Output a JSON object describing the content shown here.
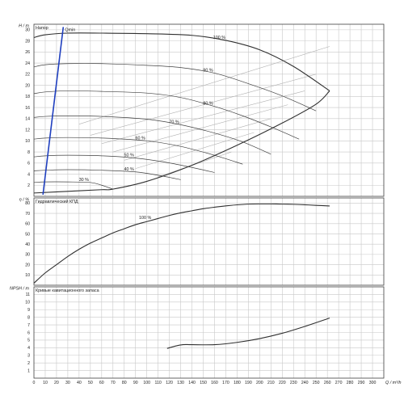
{
  "x_axis": {
    "label": "Q / m³/h",
    "ticks": [
      0,
      10,
      20,
      30,
      40,
      50,
      60,
      70,
      80,
      90,
      100,
      110,
      120,
      130,
      140,
      150,
      160,
      170,
      180,
      190,
      200,
      210,
      220,
      230,
      240,
      250,
      260,
      270,
      280,
      290,
      300
    ]
  },
  "chart_data": [
    {
      "type": "line",
      "title": "Напор",
      "ylabel": "H / m",
      "xlabel": "",
      "xlim": [
        0,
        310
      ],
      "ylim": [
        0,
        31
      ],
      "y_ticks": [
        2,
        4,
        6,
        8,
        10,
        12,
        14,
        16,
        18,
        20,
        22,
        24,
        26,
        28,
        30
      ],
      "grid": true,
      "series": [
        {
          "name": "100 %",
          "x": [
            0,
            10,
            30,
            60,
            100,
            140,
            170,
            200,
            230,
            262
          ],
          "y": [
            28.6,
            29.1,
            29.4,
            29.4,
            29.3,
            29.0,
            28.1,
            26.4,
            23.4,
            19.0
          ]
        },
        {
          "name": "90 %",
          "x": [
            0,
            10,
            30,
            60,
            100,
            130,
            160,
            190,
            220,
            250
          ],
          "y": [
            23.3,
            23.7,
            23.9,
            23.9,
            23.6,
            23.2,
            22.2,
            20.3,
            18.1,
            15.4
          ]
        },
        {
          "name": "80 %",
          "x": [
            0,
            10,
            30,
            60,
            100,
            130,
            160,
            185,
            210,
            235
          ],
          "y": [
            18.5,
            18.8,
            19.0,
            18.9,
            18.6,
            17.8,
            16.2,
            14.5,
            12.5,
            10.3
          ]
        },
        {
          "name": "70 %",
          "x": [
            0,
            10,
            30,
            60,
            100,
            130,
            160,
            185,
            210
          ],
          "y": [
            14.2,
            14.4,
            14.5,
            14.4,
            13.9,
            12.9,
            11.4,
            9.8,
            7.6
          ]
        },
        {
          "name": "60 %",
          "x": [
            0,
            10,
            30,
            60,
            100,
            130,
            160,
            185
          ],
          "y": [
            10.3,
            10.5,
            10.6,
            10.5,
            10.0,
            9.0,
            7.4,
            5.8
          ]
        },
        {
          "name": "50 %",
          "x": [
            0,
            10,
            30,
            60,
            90,
            115,
            140,
            160
          ],
          "y": [
            7.1,
            7.3,
            7.4,
            7.3,
            6.9,
            6.2,
            5.2,
            4.3
          ]
        },
        {
          "name": "40 %",
          "x": [
            0,
            10,
            30,
            60,
            90,
            110,
            130
          ],
          "y": [
            4.6,
            4.7,
            4.8,
            4.7,
            4.4,
            3.8,
            3.0
          ]
        },
        {
          "name": "30 %",
          "x": [
            0,
            10,
            30,
            50,
            60,
            70
          ],
          "y": [
            2.5,
            2.6,
            2.6,
            2.5,
            2.0,
            1.3
          ]
        },
        {
          "name": "",
          "x": [
            0,
            30,
            60,
            70,
            100,
            140,
            180,
            220,
            250,
            262
          ],
          "y": [
            0.6,
            0.9,
            1.2,
            1.3,
            2.7,
            5.6,
            9.2,
            13.2,
            16.6,
            19.0
          ]
        },
        {
          "name": "Qmin",
          "x": [
            8,
            26
          ],
          "y": [
            0.3,
            30.5
          ]
        }
      ],
      "efficiency_lines_x": [
        [
          40,
          262
        ],
        [
          50,
          250
        ],
        [
          60,
          240
        ],
        [
          70,
          225
        ],
        [
          80,
          210
        ],
        [
          90,
          195
        ],
        [
          110,
          175
        ]
      ],
      "efficiency_lines_y": [
        [
          13,
          27
        ],
        [
          11,
          22
        ],
        [
          9.5,
          19
        ],
        [
          8,
          16.5
        ],
        [
          6.5,
          14
        ],
        [
          5,
          11.5
        ],
        [
          3.5,
          8
        ]
      ]
    },
    {
      "type": "line",
      "title": "Гидравлический КПД",
      "ylabel": "η / %",
      "xlabel": "",
      "xlim": [
        0,
        310
      ],
      "ylim": [
        0,
        85
      ],
      "y_ticks": [
        10,
        20,
        30,
        40,
        50,
        60,
        70,
        80
      ],
      "grid": true,
      "series": [
        {
          "name": "100 %",
          "x": [
            0,
            10,
            20,
            30,
            40,
            50,
            60,
            70,
            80,
            90,
            100,
            110,
            120,
            130,
            140,
            150,
            160,
            170,
            180,
            190,
            200,
            210,
            220,
            230,
            240,
            250,
            262
          ],
          "y": [
            2,
            12,
            20,
            28,
            35,
            41,
            46,
            51,
            55,
            59,
            62,
            65,
            68,
            70.5,
            72.5,
            74.5,
            76,
            77.3,
            78.3,
            79,
            79.2,
            79.2,
            79,
            78.8,
            78.4,
            77.8,
            77.2
          ]
        }
      ]
    },
    {
      "type": "line",
      "title": "Кривые кавитационного запаса",
      "ylabel": "NPSH / m",
      "xlabel": "",
      "xlim": [
        0,
        310
      ],
      "ylim": [
        0,
        12
      ],
      "y_ticks": [
        1,
        2,
        3,
        4,
        5,
        6,
        7,
        8,
        9,
        10,
        11
      ],
      "grid": true,
      "series": [
        {
          "name": "",
          "x": [
            118,
            125,
            132,
            140,
            160,
            180,
            200,
            220,
            240,
            262
          ],
          "y": [
            3.9,
            4.2,
            4.4,
            4.4,
            4.4,
            4.7,
            5.2,
            5.9,
            6.8,
            7.9
          ]
        }
      ]
    }
  ]
}
